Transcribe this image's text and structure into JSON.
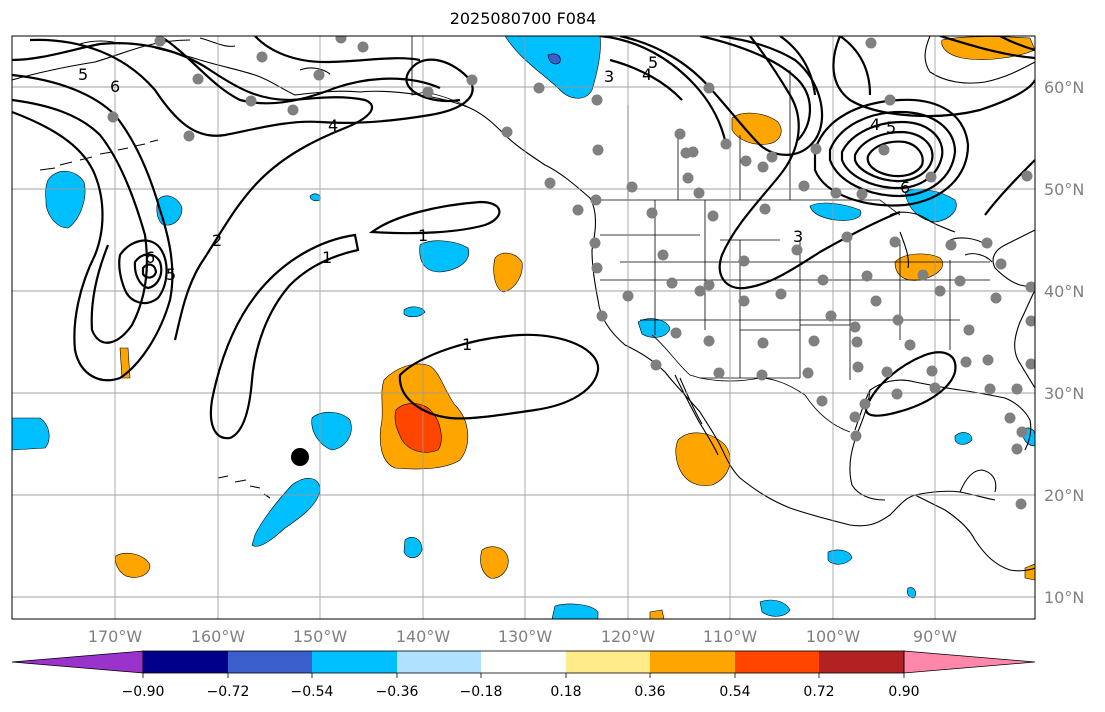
{
  "title": "2025080700 F084",
  "latitude_labels": [
    "60°N",
    "50°N",
    "40°N",
    "30°N",
    "20°N",
    "10°N"
  ],
  "longitude_labels": [
    "170°W",
    "160°W",
    "150°W",
    "140°W",
    "130°W",
    "120°W",
    "110°W",
    "100°W",
    "90°W"
  ],
  "colorbar": {
    "tick_labels": [
      "−0.90",
      "−0.72",
      "−0.54",
      "−0.36",
      "−0.18",
      "0.18",
      "0.36",
      "0.54",
      "0.72",
      "0.90"
    ],
    "colors": [
      "#9933cc",
      "#00008b",
      "#3a5fcd",
      "#00bfff",
      "#b0e2ff",
      "#ffffff",
      "#ffeb8a",
      "#ffa500",
      "#ff4500",
      "#b22222",
      "#ff88aa"
    ]
  },
  "contour_labels": [
    "5",
    "6",
    "4",
    "5",
    "3",
    "4",
    "4",
    "5",
    "6",
    "6",
    "5",
    "2",
    "1",
    "1",
    "1",
    "3"
  ],
  "colors": {
    "positive_moderate": "#ffa500",
    "positive_strong": "#ff4500",
    "negative_moderate": "#00bfff",
    "negative_strong": "#3a5fcd",
    "station_dot": "#808080",
    "grid": "#999999"
  }
}
